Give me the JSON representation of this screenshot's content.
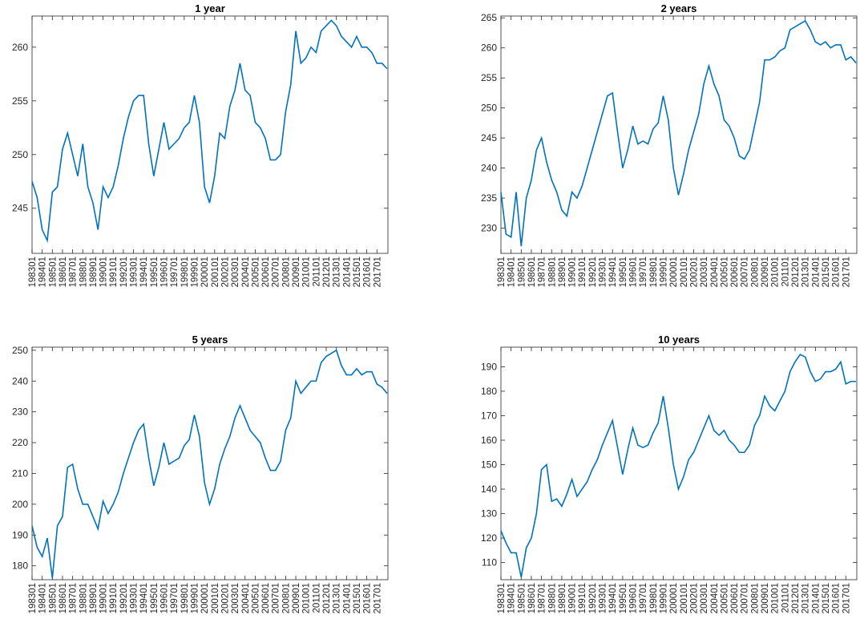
{
  "chart_data": [
    {
      "type": "line",
      "title": "1 year",
      "color": "#0072bd",
      "x": [
        "198301",
        "198307",
        "198401",
        "198407",
        "198501",
        "198507",
        "198601",
        "198607",
        "198701",
        "198707",
        "198801",
        "198807",
        "198901",
        "198907",
        "199001",
        "199007",
        "199101",
        "199107",
        "199201",
        "199207",
        "199301",
        "199307",
        "199401",
        "199407",
        "199501",
        "199507",
        "199601",
        "199607",
        "199701",
        "199707",
        "199801",
        "199807",
        "199901",
        "199907",
        "200001",
        "200007",
        "200101",
        "200107",
        "200201",
        "200207",
        "200301",
        "200307",
        "200401",
        "200407",
        "200501",
        "200507",
        "200601",
        "200607",
        "200701",
        "200707",
        "200801",
        "200807",
        "200901",
        "200907",
        "201001",
        "201007",
        "201101",
        "201107",
        "201201",
        "201207",
        "201301",
        "201307",
        "201401",
        "201407",
        "201501",
        "201507",
        "201601",
        "201607",
        "201701",
        "201707",
        "201801"
      ],
      "values": [
        247.5,
        246,
        243,
        242,
        246.5,
        247,
        250.5,
        252,
        250,
        248,
        251,
        247,
        245.5,
        243,
        247,
        246,
        247,
        249,
        251.5,
        253.5,
        255,
        255.5,
        255.5,
        251,
        248,
        250.5,
        253,
        250.5,
        251,
        251.5,
        252.5,
        253,
        255.5,
        253,
        247,
        245.5,
        248,
        252,
        251.5,
        254.5,
        256,
        258.5,
        256,
        255.5,
        253,
        252.5,
        251.5,
        249.5,
        249.5,
        250,
        254,
        256.5,
        261.5,
        258.5,
        259,
        260,
        259.5,
        261.5,
        262,
        262.5,
        262,
        261,
        260.5,
        260,
        261,
        260,
        260,
        259.5,
        258.5,
        258.5,
        258
      ],
      "xlim": [
        "198301",
        "201802"
      ],
      "xticks": [
        "198301",
        "198401",
        "198501",
        "198601",
        "198701",
        "198801",
        "198901",
        "199001",
        "199101",
        "199201",
        "199301",
        "199401",
        "199501",
        "199601",
        "199701",
        "199801",
        "199901",
        "200001",
        "200101",
        "200201",
        "200301",
        "200401",
        "200501",
        "200601",
        "200701",
        "200801",
        "200901",
        "201001",
        "201101",
        "201201",
        "201301",
        "201401",
        "201501",
        "201601",
        "201701"
      ],
      "ylim": [
        240.8,
        262.9
      ],
      "yticks": [
        245,
        250,
        255,
        260
      ]
    },
    {
      "type": "line",
      "title": "2 years",
      "color": "#0072bd",
      "x": [
        "198301",
        "198307",
        "198401",
        "198407",
        "198501",
        "198507",
        "198601",
        "198607",
        "198701",
        "198707",
        "198801",
        "198807",
        "198901",
        "198907",
        "199001",
        "199007",
        "199101",
        "199107",
        "199201",
        "199207",
        "199301",
        "199307",
        "199401",
        "199407",
        "199501",
        "199507",
        "199601",
        "199607",
        "199701",
        "199707",
        "199801",
        "199807",
        "199901",
        "199907",
        "200001",
        "200007",
        "200101",
        "200107",
        "200201",
        "200207",
        "200301",
        "200307",
        "200401",
        "200407",
        "200501",
        "200507",
        "200601",
        "200607",
        "200701",
        "200707",
        "200801",
        "200807",
        "200901",
        "200907",
        "201001",
        "201007",
        "201101",
        "201107",
        "201201",
        "201207",
        "201301",
        "201307",
        "201401",
        "201407",
        "201501",
        "201507",
        "201601",
        "201607",
        "201701",
        "201707",
        "201801"
      ],
      "values": [
        236,
        229,
        228.5,
        236,
        227,
        235,
        238,
        243,
        245,
        241,
        238,
        236,
        233,
        232,
        236,
        235,
        237,
        240,
        243,
        246,
        249,
        252,
        252.5,
        246,
        240,
        243,
        247,
        244,
        244.5,
        244,
        246.5,
        247.5,
        252,
        248,
        240,
        235.5,
        239,
        243,
        246,
        249,
        254,
        257,
        254,
        252,
        248,
        247,
        245,
        242,
        241.5,
        243,
        247,
        251,
        258,
        258,
        258.5,
        259.5,
        260,
        263,
        263.5,
        264,
        264.5,
        263,
        261,
        260.5,
        261,
        260,
        260.5,
        260.5,
        258,
        258.5,
        257.5
      ],
      "xlim": [
        "198301",
        "201802"
      ],
      "xticks": [
        "198301",
        "198401",
        "198501",
        "198601",
        "198701",
        "198801",
        "198901",
        "199001",
        "199101",
        "199201",
        "199301",
        "199401",
        "199501",
        "199601",
        "199701",
        "199801",
        "199901",
        "200001",
        "200101",
        "200201",
        "200301",
        "200401",
        "200501",
        "200601",
        "200701",
        "200801",
        "200901",
        "201001",
        "201101",
        "201201",
        "201301",
        "201401",
        "201501",
        "201601",
        "201701"
      ],
      "ylim": [
        225.8,
        265.3
      ],
      "yticks": [
        230,
        235,
        240,
        245,
        250,
        255,
        260,
        265
      ]
    },
    {
      "type": "line",
      "title": "5 years",
      "color": "#0072bd",
      "x": [
        "198301",
        "198307",
        "198401",
        "198407",
        "198501",
        "198507",
        "198601",
        "198607",
        "198701",
        "198707",
        "198801",
        "198807",
        "198901",
        "198907",
        "199001",
        "199007",
        "199101",
        "199107",
        "199201",
        "199207",
        "199301",
        "199307",
        "199401",
        "199407",
        "199501",
        "199507",
        "199601",
        "199607",
        "199701",
        "199707",
        "199801",
        "199807",
        "199901",
        "199907",
        "200001",
        "200007",
        "200101",
        "200107",
        "200201",
        "200207",
        "200301",
        "200307",
        "200401",
        "200407",
        "200501",
        "200507",
        "200601",
        "200607",
        "200701",
        "200707",
        "200801",
        "200807",
        "200901",
        "200907",
        "201001",
        "201007",
        "201101",
        "201107",
        "201201",
        "201207",
        "201301",
        "201307",
        "201401",
        "201407",
        "201501",
        "201507",
        "201601",
        "201607",
        "201701",
        "201707",
        "201801"
      ],
      "values": [
        193,
        186,
        183,
        189,
        176,
        193,
        196,
        212,
        213,
        205,
        200,
        200,
        196,
        192,
        201,
        197,
        200,
        204,
        210,
        215,
        220,
        224,
        226,
        215,
        206,
        212,
        220,
        213,
        214,
        215,
        219,
        221,
        229,
        222,
        207,
        200,
        205,
        213,
        218,
        222,
        228,
        232,
        228,
        224,
        222,
        220,
        215,
        211,
        211,
        214,
        224,
        228,
        240,
        236,
        238,
        240,
        240,
        246,
        248,
        249,
        250,
        245,
        242,
        242,
        244,
        242,
        243,
        243,
        239,
        238,
        236
      ],
      "xlim": [
        "198301",
        "201802"
      ],
      "xticks": [
        "198301",
        "198401",
        "198501",
        "198601",
        "198701",
        "198801",
        "198901",
        "199001",
        "199101",
        "199201",
        "199301",
        "199401",
        "199501",
        "199601",
        "199701",
        "199801",
        "199901",
        "200001",
        "200101",
        "200201",
        "200301",
        "200401",
        "200501",
        "200601",
        "200701",
        "200801",
        "200901",
        "201001",
        "201101",
        "201201",
        "201301",
        "201401",
        "201501",
        "201601",
        "201701"
      ],
      "ylim": [
        175.5,
        251
      ],
      "yticks": [
        180,
        190,
        200,
        210,
        220,
        230,
        240,
        250
      ]
    },
    {
      "type": "line",
      "title": "10 years",
      "color": "#0072bd",
      "x": [
        "198301",
        "198307",
        "198401",
        "198407",
        "198501",
        "198507",
        "198601",
        "198607",
        "198701",
        "198707",
        "198801",
        "198807",
        "198901",
        "198907",
        "199001",
        "199007",
        "199101",
        "199107",
        "199201",
        "199207",
        "199301",
        "199307",
        "199401",
        "199407",
        "199501",
        "199507",
        "199601",
        "199607",
        "199701",
        "199707",
        "199801",
        "199807",
        "199901",
        "199907",
        "200001",
        "200007",
        "200101",
        "200107",
        "200201",
        "200207",
        "200301",
        "200307",
        "200401",
        "200407",
        "200501",
        "200507",
        "200601",
        "200607",
        "200701",
        "200707",
        "200801",
        "200807",
        "200901",
        "200907",
        "201001",
        "201007",
        "201101",
        "201107",
        "201201",
        "201207",
        "201301",
        "201307",
        "201401",
        "201407",
        "201501",
        "201507",
        "201601",
        "201607",
        "201701",
        "201707",
        "201801"
      ],
      "values": [
        123,
        118,
        114,
        114,
        104,
        116,
        120,
        130,
        148,
        150,
        135,
        136,
        133,
        138,
        144,
        137,
        140,
        143,
        148,
        152,
        158,
        163,
        168,
        157,
        146,
        156,
        165,
        158,
        157,
        158,
        163,
        167,
        178,
        165,
        150,
        140,
        145,
        152,
        155,
        160,
        165,
        170,
        164,
        162,
        164,
        160,
        158,
        155,
        155,
        158,
        166,
        170,
        178,
        174,
        172,
        176,
        180,
        188,
        192,
        195,
        194,
        188,
        184,
        185,
        188,
        188,
        189,
        192,
        183,
        184,
        184
      ],
      "xlim": [
        "198301",
        "201802"
      ],
      "xticks": [
        "198301",
        "198401",
        "198501",
        "198601",
        "198701",
        "198801",
        "198901",
        "199001",
        "199101",
        "199201",
        "199301",
        "199401",
        "199501",
        "199601",
        "199701",
        "199801",
        "199901",
        "200001",
        "200101",
        "200201",
        "200301",
        "200401",
        "200501",
        "200601",
        "200701",
        "200801",
        "200901",
        "201001",
        "201101",
        "201201",
        "201301",
        "201401",
        "201501",
        "201601",
        "201701"
      ],
      "ylim": [
        103,
        198
      ],
      "yticks": [
        110,
        120,
        130,
        140,
        150,
        160,
        170,
        180,
        190
      ]
    }
  ]
}
